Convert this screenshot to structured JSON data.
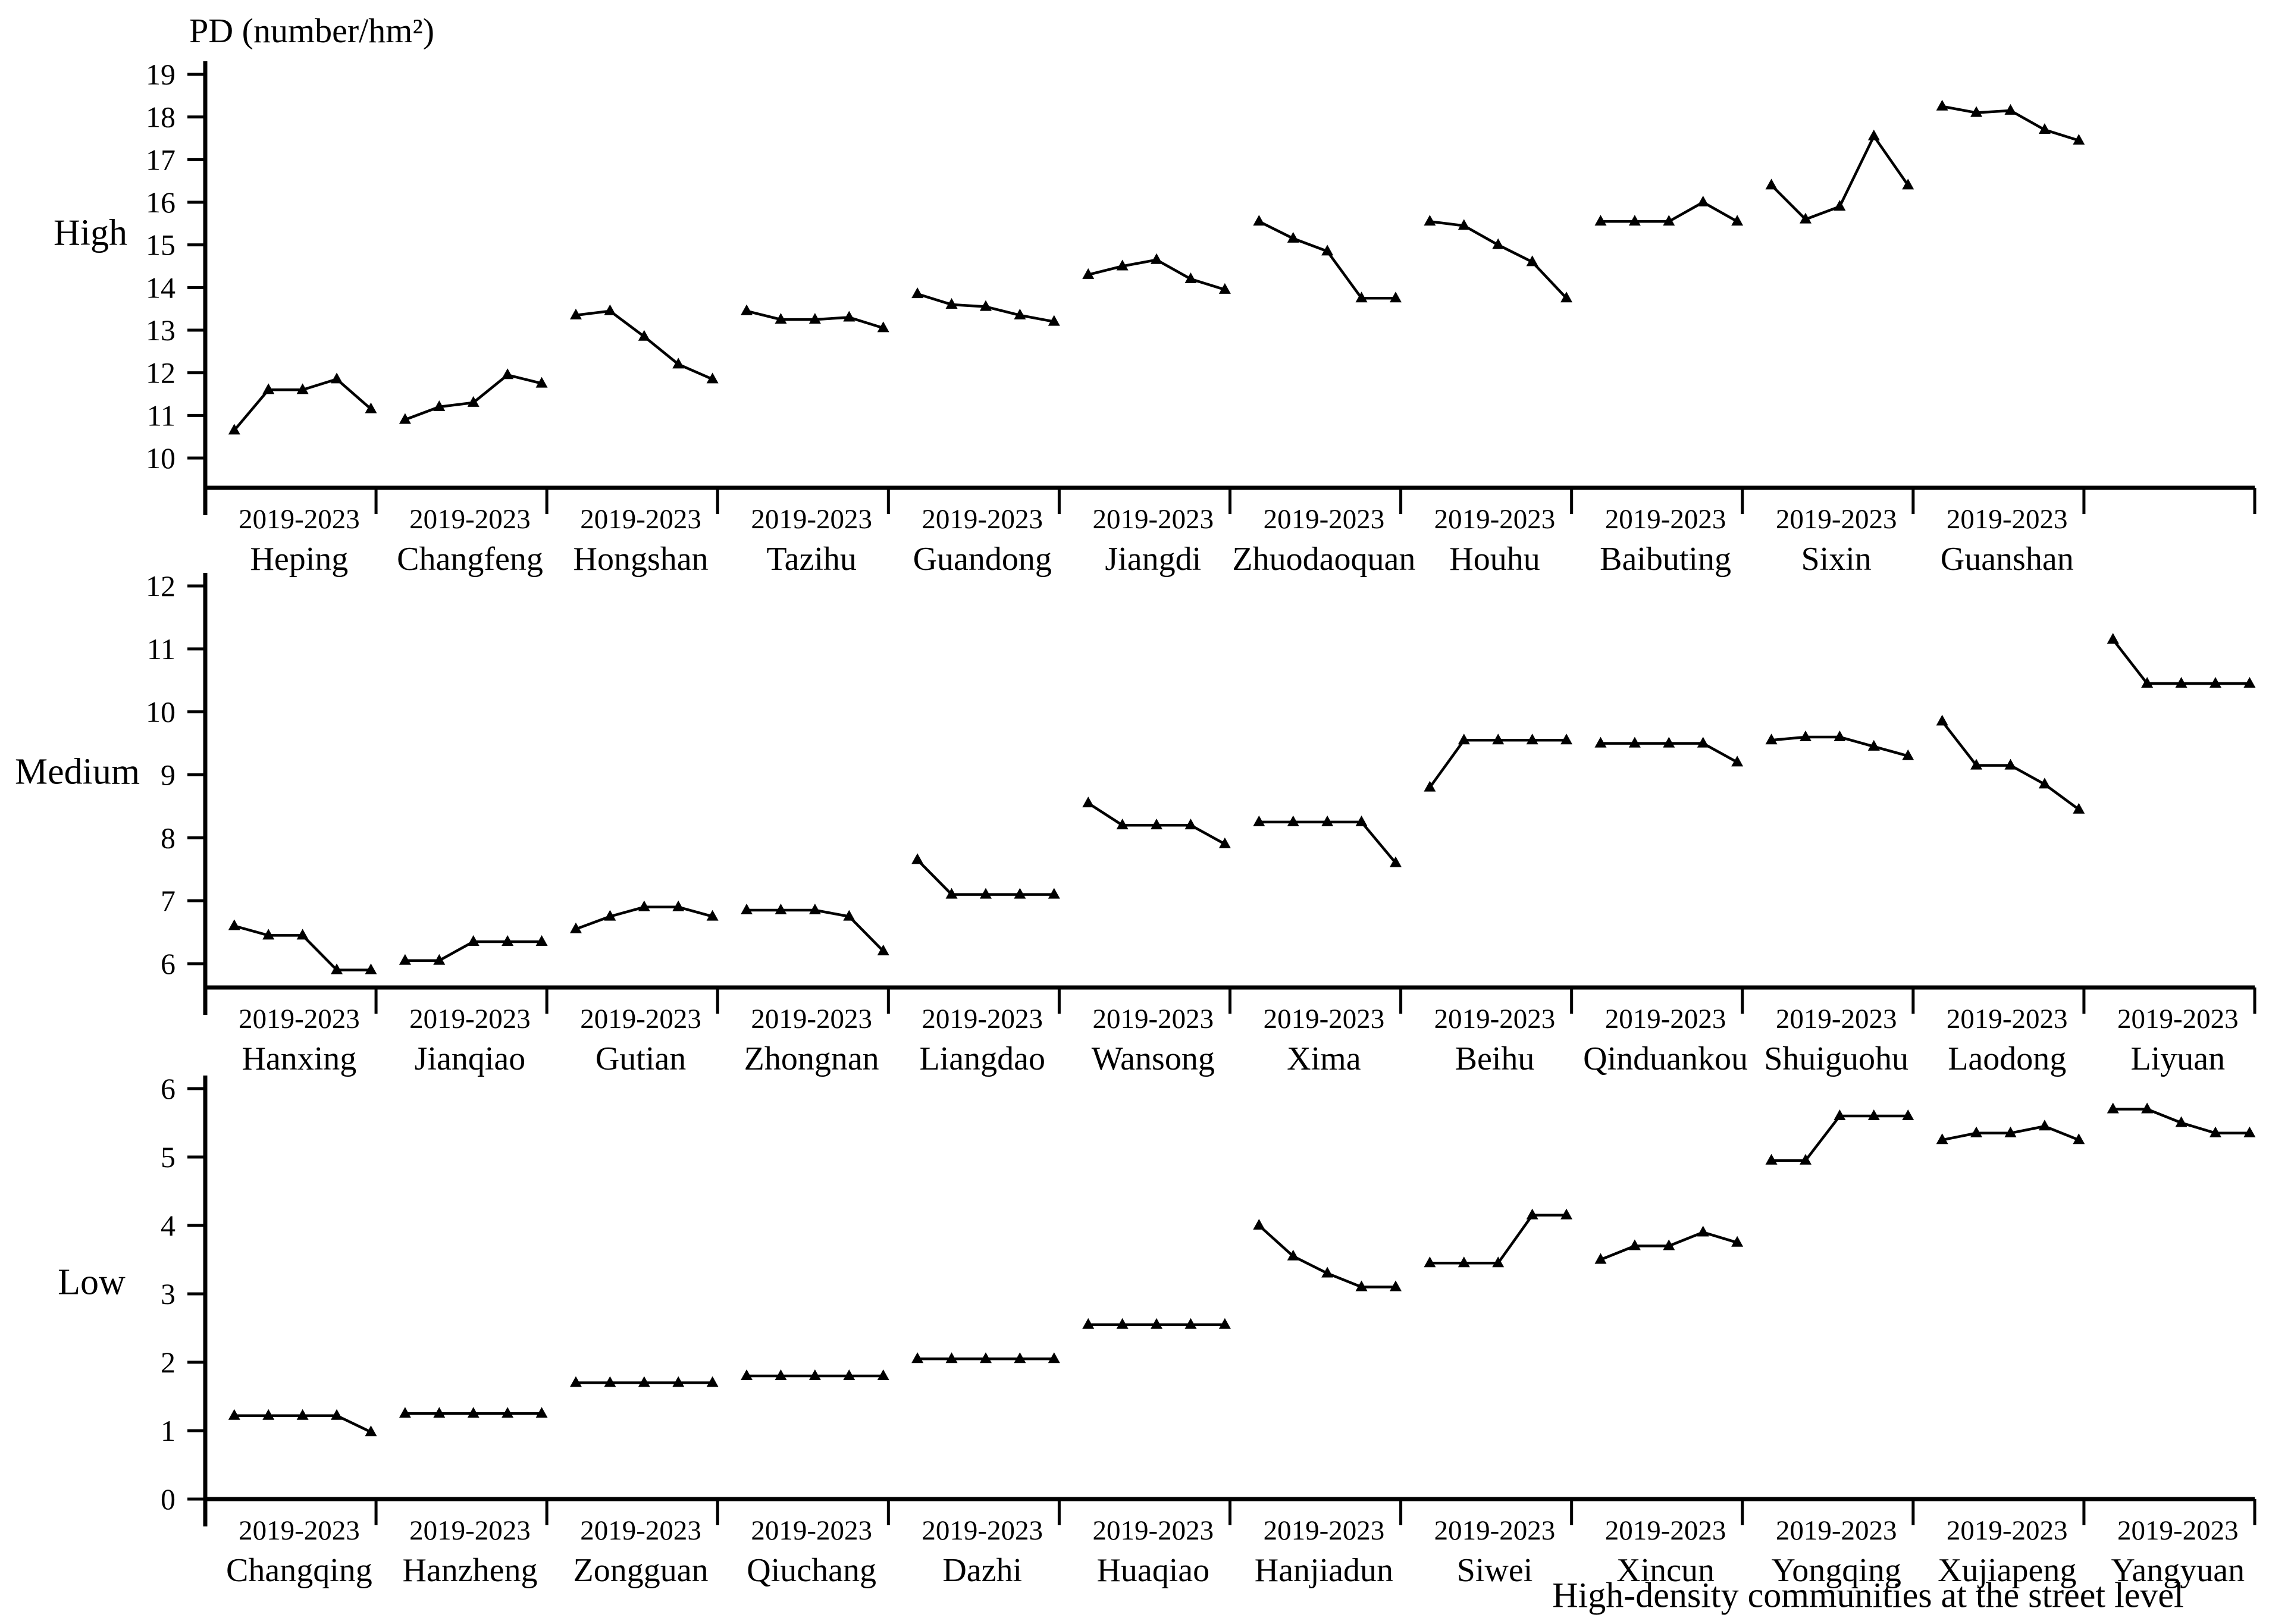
{
  "figure": {
    "title": "PD (number/hm²)",
    "x_axis_title": "High-density communities at the street level",
    "period_label": "2019-2023",
    "line_color": "#000000",
    "background_color": "#ffffff"
  },
  "chart_data": [
    {
      "type": "line",
      "panel_label": "High",
      "ylabel": "PD (number/hm²)",
      "ylim": [
        10,
        19
      ],
      "ytick_step": 1,
      "marker": "triangle-up",
      "legend": "none",
      "grid": false,
      "x_group_tick_label": "2019-2023",
      "groups": [
        {
          "name": "Heping",
          "values": [
            10.65,
            11.6,
            11.6,
            11.85,
            11.15
          ]
        },
        {
          "name": "Changfeng",
          "values": [
            10.9,
            11.2,
            11.3,
            11.95,
            11.75
          ]
        },
        {
          "name": "Hongshan",
          "values": [
            13.35,
            13.45,
            12.85,
            12.2,
            11.85
          ]
        },
        {
          "name": "Tazihu",
          "values": [
            13.45,
            13.25,
            13.25,
            13.3,
            13.05
          ]
        },
        {
          "name": "Guandong",
          "values": [
            13.85,
            13.6,
            13.55,
            13.35,
            13.2
          ]
        },
        {
          "name": "Jiangdi",
          "values": [
            14.3,
            14.5,
            14.65,
            14.2,
            13.95
          ]
        },
        {
          "name": "Zhuodaoquan",
          "values": [
            15.55,
            15.15,
            14.85,
            13.75,
            13.75
          ]
        },
        {
          "name": "Houhu",
          "values": [
            15.55,
            15.45,
            15.0,
            14.6,
            13.75
          ]
        },
        {
          "name": "Baibuting",
          "values": [
            15.55,
            15.55,
            15.55,
            16.0,
            15.55
          ]
        },
        {
          "name": "Sixin",
          "values": [
            16.4,
            15.6,
            15.9,
            17.55,
            16.4
          ]
        },
        {
          "name": "Guanshan",
          "values": [
            18.25,
            18.1,
            18.15,
            17.7,
            17.45
          ]
        }
      ]
    },
    {
      "type": "line",
      "panel_label": "Medium",
      "ylim": [
        6,
        12
      ],
      "ytick_step": 1,
      "marker": "triangle-up",
      "legend": "none",
      "grid": false,
      "x_group_tick_label": "2019-2023",
      "groups": [
        {
          "name": "Hanxing",
          "values": [
            6.6,
            6.45,
            6.45,
            5.9,
            5.9
          ]
        },
        {
          "name": "Jianqiao",
          "values": [
            6.05,
            6.05,
            6.35,
            6.35,
            6.35
          ]
        },
        {
          "name": "Gutian",
          "values": [
            6.55,
            6.75,
            6.9,
            6.9,
            6.75
          ]
        },
        {
          "name": "Zhongnan",
          "values": [
            6.85,
            6.85,
            6.85,
            6.75,
            6.2
          ]
        },
        {
          "name": "Liangdao",
          "values": [
            7.65,
            7.1,
            7.1,
            7.1,
            7.1
          ]
        },
        {
          "name": "Wansong",
          "values": [
            8.55,
            8.2,
            8.2,
            8.2,
            7.9
          ]
        },
        {
          "name": "Xima",
          "values": [
            8.25,
            8.25,
            8.25,
            8.25,
            7.6
          ]
        },
        {
          "name": "Beihu",
          "values": [
            8.8,
            9.55,
            9.55,
            9.55,
            9.55
          ]
        },
        {
          "name": "Qinduankou",
          "values": [
            9.5,
            9.5,
            9.5,
            9.5,
            9.2
          ]
        },
        {
          "name": "Shuiguohu",
          "values": [
            9.55,
            9.6,
            9.6,
            9.45,
            9.3
          ]
        },
        {
          "name": "Laodong",
          "values": [
            9.85,
            9.15,
            9.15,
            8.85,
            8.45
          ]
        },
        {
          "name": "Liyuan",
          "values": [
            11.15,
            10.45,
            10.45,
            10.45,
            10.45
          ]
        }
      ]
    },
    {
      "type": "line",
      "panel_label": "Low",
      "ylim": [
        0,
        6
      ],
      "ytick_step": 1,
      "marker": "triangle-up",
      "legend": "none",
      "grid": false,
      "x_group_tick_label": "2019-2023",
      "groups": [
        {
          "name": "Changqing",
          "values": [
            1.22,
            1.22,
            1.22,
            1.22,
            0.98
          ]
        },
        {
          "name": "Hanzheng",
          "values": [
            1.25,
            1.25,
            1.25,
            1.25,
            1.25
          ]
        },
        {
          "name": "Zongguan",
          "values": [
            1.7,
            1.7,
            1.7,
            1.7,
            1.7
          ]
        },
        {
          "name": "Qiuchang",
          "values": [
            1.8,
            1.8,
            1.8,
            1.8,
            1.8
          ]
        },
        {
          "name": "Dazhi",
          "values": [
            2.05,
            2.05,
            2.05,
            2.05,
            2.05
          ]
        },
        {
          "name": "Huaqiao",
          "values": [
            2.55,
            2.55,
            2.55,
            2.55,
            2.55
          ]
        },
        {
          "name": "Hanjiadun",
          "values": [
            4.0,
            3.55,
            3.3,
            3.1,
            3.1
          ]
        },
        {
          "name": "Siwei",
          "values": [
            3.45,
            3.45,
            3.45,
            4.15,
            4.15
          ]
        },
        {
          "name": "Xincun",
          "values": [
            3.5,
            3.7,
            3.7,
            3.9,
            3.75
          ]
        },
        {
          "name": "Yongqing",
          "values": [
            4.95,
            4.95,
            5.6,
            5.6,
            5.6
          ]
        },
        {
          "name": "Xujiapeng",
          "values": [
            5.25,
            5.35,
            5.35,
            5.45,
            5.25
          ]
        },
        {
          "name": "Yangyuan",
          "values": [
            5.7,
            5.7,
            5.5,
            5.35,
            5.35
          ]
        }
      ]
    }
  ]
}
